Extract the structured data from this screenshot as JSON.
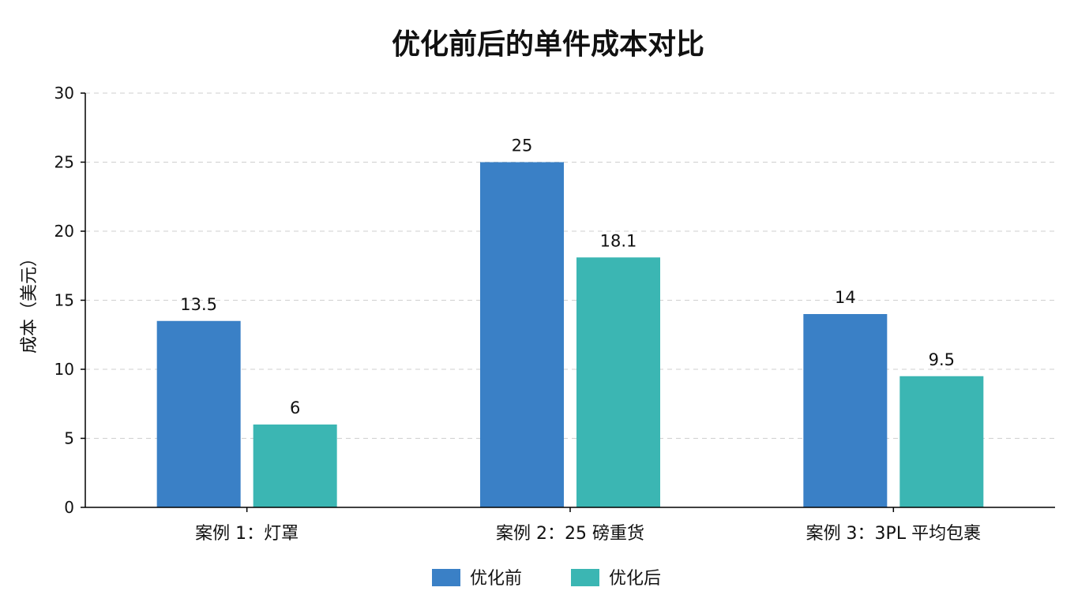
{
  "chart_data": {
    "type": "bar",
    "title": "优化前后的单件成本对比",
    "ylabel": "成本（美元）",
    "xlabel": "",
    "ylim": [
      0,
      30
    ],
    "yticks": [
      0,
      5,
      10,
      15,
      20,
      25,
      30
    ],
    "grid": true,
    "legend_position": "bottom",
    "categories": [
      "案例 1：灯罩",
      "案例 2：25 磅重货",
      "案例 3：3PL 平均包裹"
    ],
    "series": [
      {
        "name": "优化前",
        "values": [
          13.5,
          25,
          14
        ],
        "labels": [
          "13.5",
          "25",
          "14"
        ],
        "color": "#3a80c6"
      },
      {
        "name": "优化后",
        "values": [
          6,
          18.1,
          9.5
        ],
        "labels": [
          "6",
          "18.1",
          "9.5"
        ],
        "color": "#3bb6b3"
      }
    ]
  }
}
